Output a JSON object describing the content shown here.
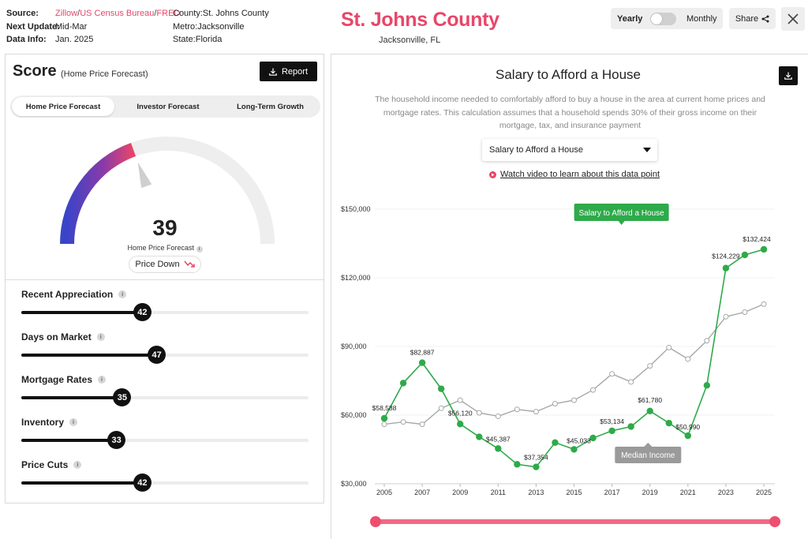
{
  "header": {
    "source_label": "Source:",
    "sources": [
      "Zillow",
      "US Census Bureau",
      "FRED"
    ],
    "source_sep": "/",
    "next_update_label": "Next Update:",
    "next_update": "Mid-Mar",
    "data_info_label": "Data Info:",
    "data_info": "Jan. 2025",
    "county_label": "County:",
    "county": "St. Johns County",
    "metro_label": "Metro:",
    "metro": "Jacksonville",
    "state_label": "State:",
    "state": "Florida",
    "title": "St. Johns County",
    "subtitle": "Jacksonville, FL",
    "toggle_left": "Yearly",
    "toggle_right": "Monthly",
    "share_label": "Share"
  },
  "colors": {
    "accent": "#e8466a",
    "green": "#2eaa4a",
    "gray_line": "#a3aaa5",
    "dark": "#111111"
  },
  "score_panel": {
    "title": "Score",
    "subtitle": "(Home Price Forecast)",
    "report_label": "Report",
    "tabs": [
      {
        "label": "Home Price Forecast",
        "active": true
      },
      {
        "label": "Investor Forecast",
        "active": false
      },
      {
        "label": "Long-Term Growth",
        "active": false
      }
    ],
    "gauge": {
      "value": 39,
      "max": 100,
      "label": "Home Price Forecast"
    },
    "trend_label": "Price Down",
    "metrics": [
      {
        "name": "Recent Appreciation",
        "value": 42
      },
      {
        "name": "Days on Market",
        "value": 47
      },
      {
        "name": "Mortgage Rates",
        "value": 35
      },
      {
        "name": "Inventory",
        "value": 33
      },
      {
        "name": "Price Cuts",
        "value": 42
      }
    ]
  },
  "chart_panel": {
    "title": "Salary to Afford a House",
    "description": "The household income needed to comfortably afford to buy a house in the area at current home prices and mortgage rates. This calculation assumes that a household spends 30% of their gross income on their mortgage, tax, and insurance payment",
    "dropdown_value": "Salary to Afford a House",
    "video_link": "Watch video to learn about this data point"
  },
  "chart_data": {
    "type": "line",
    "title": "Salary to Afford a House",
    "x": [
      2005,
      2006,
      2007,
      2008,
      2009,
      2010,
      2011,
      2012,
      2013,
      2014,
      2015,
      2016,
      2017,
      2018,
      2019,
      2020,
      2021,
      2022,
      2023,
      2024,
      2025
    ],
    "x_ticks": [
      "2005",
      "2007",
      "2009",
      "2011",
      "2013",
      "2015",
      "2017",
      "2019",
      "2021",
      "2023",
      "2025"
    ],
    "ylim": [
      30000,
      150000
    ],
    "y_ticks": [
      "$30,000",
      "$60,000",
      "$90,000",
      "$120,000",
      "$150,000"
    ],
    "y_tick_values": [
      30000,
      60000,
      90000,
      120000,
      150000
    ],
    "series": [
      {
        "name": "Salary to Afford a House",
        "color": "#2eaa4a",
        "values": [
          58588,
          74000,
          82887,
          71500,
          56120,
          50500,
          45387,
          38500,
          37354,
          48000,
          45033,
          50000,
          53134,
          55000,
          61780,
          56500,
          50990,
          73000,
          124229,
          130000,
          132424
        ],
        "labels": [
          "$58,588",
          "",
          "$82,887",
          "",
          "$56,120",
          "",
          "$45,387",
          "",
          "$37,354",
          "",
          "$45,033",
          "",
          "$53,134",
          "",
          "$61,780",
          "",
          "$50,990",
          "",
          "$124,229",
          "",
          "$132,424"
        ]
      },
      {
        "name": "Median Income",
        "color": "#a3aaa5",
        "values": [
          56000,
          57000,
          56000,
          63000,
          66500,
          61000,
          59500,
          62500,
          61500,
          65000,
          66500,
          71000,
          78000,
          74500,
          81500,
          89500,
          84500,
          92500,
          103000,
          105000,
          108500
        ]
      }
    ],
    "tooltip_green": "Salary to Afford a House",
    "tooltip_gray": "Median Income"
  }
}
